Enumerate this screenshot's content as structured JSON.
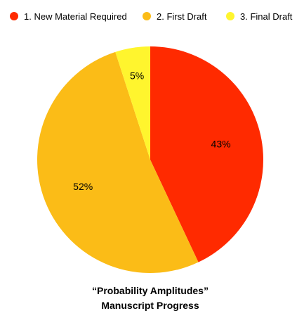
{
  "chart_data": {
    "type": "pie",
    "title_lines": [
      "“Probability Amplitudes”",
      "Manuscript Progress"
    ],
    "categories": [
      "1. New Material Required",
      "2. First Draft",
      "3. Final Draft"
    ],
    "values": [
      43,
      52,
      5
    ],
    "value_labels": [
      "43%",
      "52%",
      "5%"
    ],
    "colors": [
      "#ff2a00",
      "#fbbc17",
      "#fff52e"
    ],
    "legend_position": "top",
    "start_angle_deg": 0,
    "direction": "clockwise"
  }
}
